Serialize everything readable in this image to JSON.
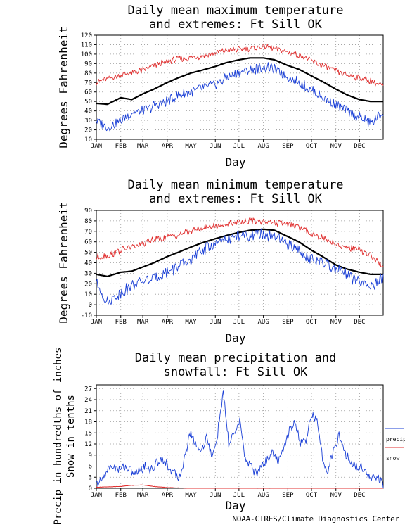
{
  "months": [
    "JAN",
    "FEB",
    "MAR",
    "APR",
    "MAY",
    "JUN",
    "JUL",
    "AUG",
    "SEP",
    "OCT",
    "NOV",
    "DEC"
  ],
  "footer": "NOAA-CIRES/Climate Diagnostics Center",
  "colors": {
    "mean": "#000000",
    "max_extreme": "#e03030",
    "min_extreme": "#1a3fd6",
    "precip": "#1a3fd6",
    "snow": "#e03030",
    "grid": "#9a9a9a"
  },
  "chart_data": [
    {
      "type": "line",
      "title_line1": "Daily mean maximum temperature",
      "title_line2": "and extremes: Ft Sill OK",
      "xlabel": "Day",
      "ylabel": "Degrees Fahrenheit",
      "ylim": [
        10,
        120
      ],
      "yticks": [
        10,
        20,
        30,
        40,
        50,
        60,
        70,
        80,
        90,
        100,
        110,
        120
      ],
      "ytick_labels": [
        "10",
        "20",
        "30",
        "40",
        "50",
        "60",
        "70",
        "80",
        "90",
        "100",
        "110",
        "120"
      ],
      "grid": true,
      "series": [
        {
          "role": "mean",
          "color": "#000000",
          "days": [
            1,
            15,
            32,
            46,
            60,
            74,
            91,
            105,
            121,
            135,
            152,
            166,
            182,
            196,
            213,
            227,
            244,
            258,
            274,
            288,
            305,
            319,
            335,
            349,
            365
          ],
          "values": [
            48,
            47,
            54,
            52,
            58,
            63,
            70,
            75,
            80,
            83,
            87,
            91,
            94,
            96,
            96,
            94,
            88,
            84,
            77,
            71,
            63,
            57,
            52,
            50,
            50
          ]
        },
        {
          "role": "record-high",
          "color": "#e03030",
          "days": [
            1,
            15,
            32,
            46,
            60,
            74,
            91,
            105,
            121,
            135,
            152,
            166,
            182,
            196,
            213,
            227,
            244,
            258,
            274,
            288,
            305,
            319,
            335,
            349,
            365
          ],
          "values": [
            70,
            74,
            78,
            80,
            83,
            88,
            92,
            95,
            96,
            98,
            101,
            104,
            105,
            106,
            108,
            106,
            102,
            99,
            93,
            88,
            82,
            78,
            75,
            72,
            66
          ]
        },
        {
          "role": "record-low",
          "color": "#1a3fd6",
          "days": [
            1,
            15,
            32,
            46,
            60,
            74,
            91,
            105,
            121,
            135,
            152,
            166,
            182,
            196,
            213,
            227,
            244,
            258,
            274,
            288,
            305,
            319,
            335,
            349,
            365
          ],
          "values": [
            30,
            22,
            30,
            38,
            40,
            45,
            50,
            56,
            60,
            64,
            68,
            75,
            80,
            83,
            86,
            84,
            76,
            70,
            62,
            54,
            46,
            40,
            33,
            27,
            38
          ]
        }
      ]
    },
    {
      "type": "line",
      "title_line1": "Daily mean minimum temperature",
      "title_line2": "and extremes: Ft Sill OK",
      "xlabel": "Day",
      "ylabel": "Degrees Fahrenheit",
      "ylim": [
        -10,
        90
      ],
      "yticks": [
        -10,
        0,
        10,
        20,
        30,
        40,
        50,
        60,
        70,
        80,
        90
      ],
      "ytick_labels": [
        "-10",
        "0",
        "10",
        "20",
        "30",
        "40",
        "50",
        "60",
        "70",
        "80",
        "90"
      ],
      "grid": true,
      "series": [
        {
          "role": "mean",
          "color": "#000000",
          "days": [
            1,
            15,
            32,
            46,
            60,
            74,
            91,
            105,
            121,
            135,
            152,
            166,
            182,
            196,
            213,
            227,
            244,
            258,
            274,
            288,
            305,
            319,
            335,
            349,
            365
          ],
          "values": [
            29,
            27,
            31,
            32,
            36,
            40,
            46,
            50,
            55,
            59,
            63,
            66,
            69,
            71,
            72,
            71,
            65,
            60,
            52,
            46,
            38,
            34,
            31,
            29,
            29
          ]
        },
        {
          "role": "record-high",
          "color": "#e03030",
          "days": [
            1,
            15,
            32,
            46,
            60,
            74,
            91,
            105,
            121,
            135,
            152,
            166,
            182,
            196,
            213,
            227,
            244,
            258,
            274,
            288,
            305,
            319,
            335,
            349,
            365
          ],
          "values": [
            45,
            47,
            52,
            55,
            58,
            62,
            64,
            67,
            70,
            73,
            75,
            77,
            79,
            80,
            80,
            78,
            77,
            74,
            68,
            64,
            58,
            54,
            52,
            47,
            36
          ]
        },
        {
          "role": "record-low",
          "color": "#1a3fd6",
          "days": [
            1,
            15,
            32,
            46,
            60,
            74,
            91,
            105,
            121,
            135,
            152,
            166,
            182,
            196,
            213,
            227,
            244,
            258,
            274,
            288,
            305,
            319,
            335,
            349,
            365
          ],
          "values": [
            20,
            2,
            12,
            18,
            22,
            25,
            32,
            36,
            42,
            52,
            58,
            62,
            66,
            66,
            67,
            64,
            58,
            52,
            44,
            40,
            34,
            28,
            22,
            16,
            26
          ]
        }
      ]
    },
    {
      "type": "line",
      "title_line1": "Daily mean precipitation and",
      "title_line2": "snowfall: Ft Sill OK",
      "xlabel": "Day",
      "ylabel_line1": "Precip in hundredths of inches",
      "ylabel_line2": "Snow in tenths",
      "ylim": [
        0,
        28
      ],
      "yticks": [
        0,
        3,
        6,
        9,
        12,
        15,
        18,
        21,
        24,
        27
      ],
      "ytick_labels": [
        "0",
        "3",
        "6",
        "9",
        "12",
        "15",
        "18",
        "21",
        "24",
        "27"
      ],
      "grid": true,
      "legend": {
        "position": "right",
        "entries": [
          "precip",
          "snow"
        ]
      },
      "series": [
        {
          "name": "precip",
          "color": "#1a3fd6",
          "days": [
            1,
            8,
            15,
            22,
            29,
            36,
            43,
            50,
            57,
            64,
            71,
            78,
            85,
            92,
            99,
            106,
            113,
            120,
            127,
            134,
            141,
            148,
            155,
            162,
            169,
            176,
            183,
            190,
            197,
            204,
            211,
            218,
            225,
            232,
            239,
            246,
            253,
            260,
            267,
            274,
            281,
            288,
            295,
            302,
            309,
            316,
            323,
            330,
            337,
            344,
            351,
            358,
            365
          ],
          "values": [
            1,
            2,
            5,
            6,
            5,
            6,
            5,
            4,
            5,
            6,
            5,
            7,
            8,
            6,
            4,
            3,
            8,
            15,
            12,
            10,
            14,
            8,
            15,
            26,
            12,
            15,
            18,
            8,
            6,
            4,
            6,
            8,
            10,
            7,
            11,
            16,
            18,
            12,
            13,
            20,
            18,
            8,
            5,
            10,
            14,
            10,
            7,
            6,
            6,
            4,
            3,
            3,
            1
          ]
        },
        {
          "name": "snow",
          "color": "#e03030",
          "days": [
            1,
            15,
            32,
            46,
            60,
            74,
            91,
            105,
            121,
            365
          ],
          "values": [
            0.3,
            0.4,
            0.5,
            0.8,
            0.9,
            0.5,
            0.2,
            0.1,
            0,
            0
          ]
        }
      ]
    }
  ]
}
